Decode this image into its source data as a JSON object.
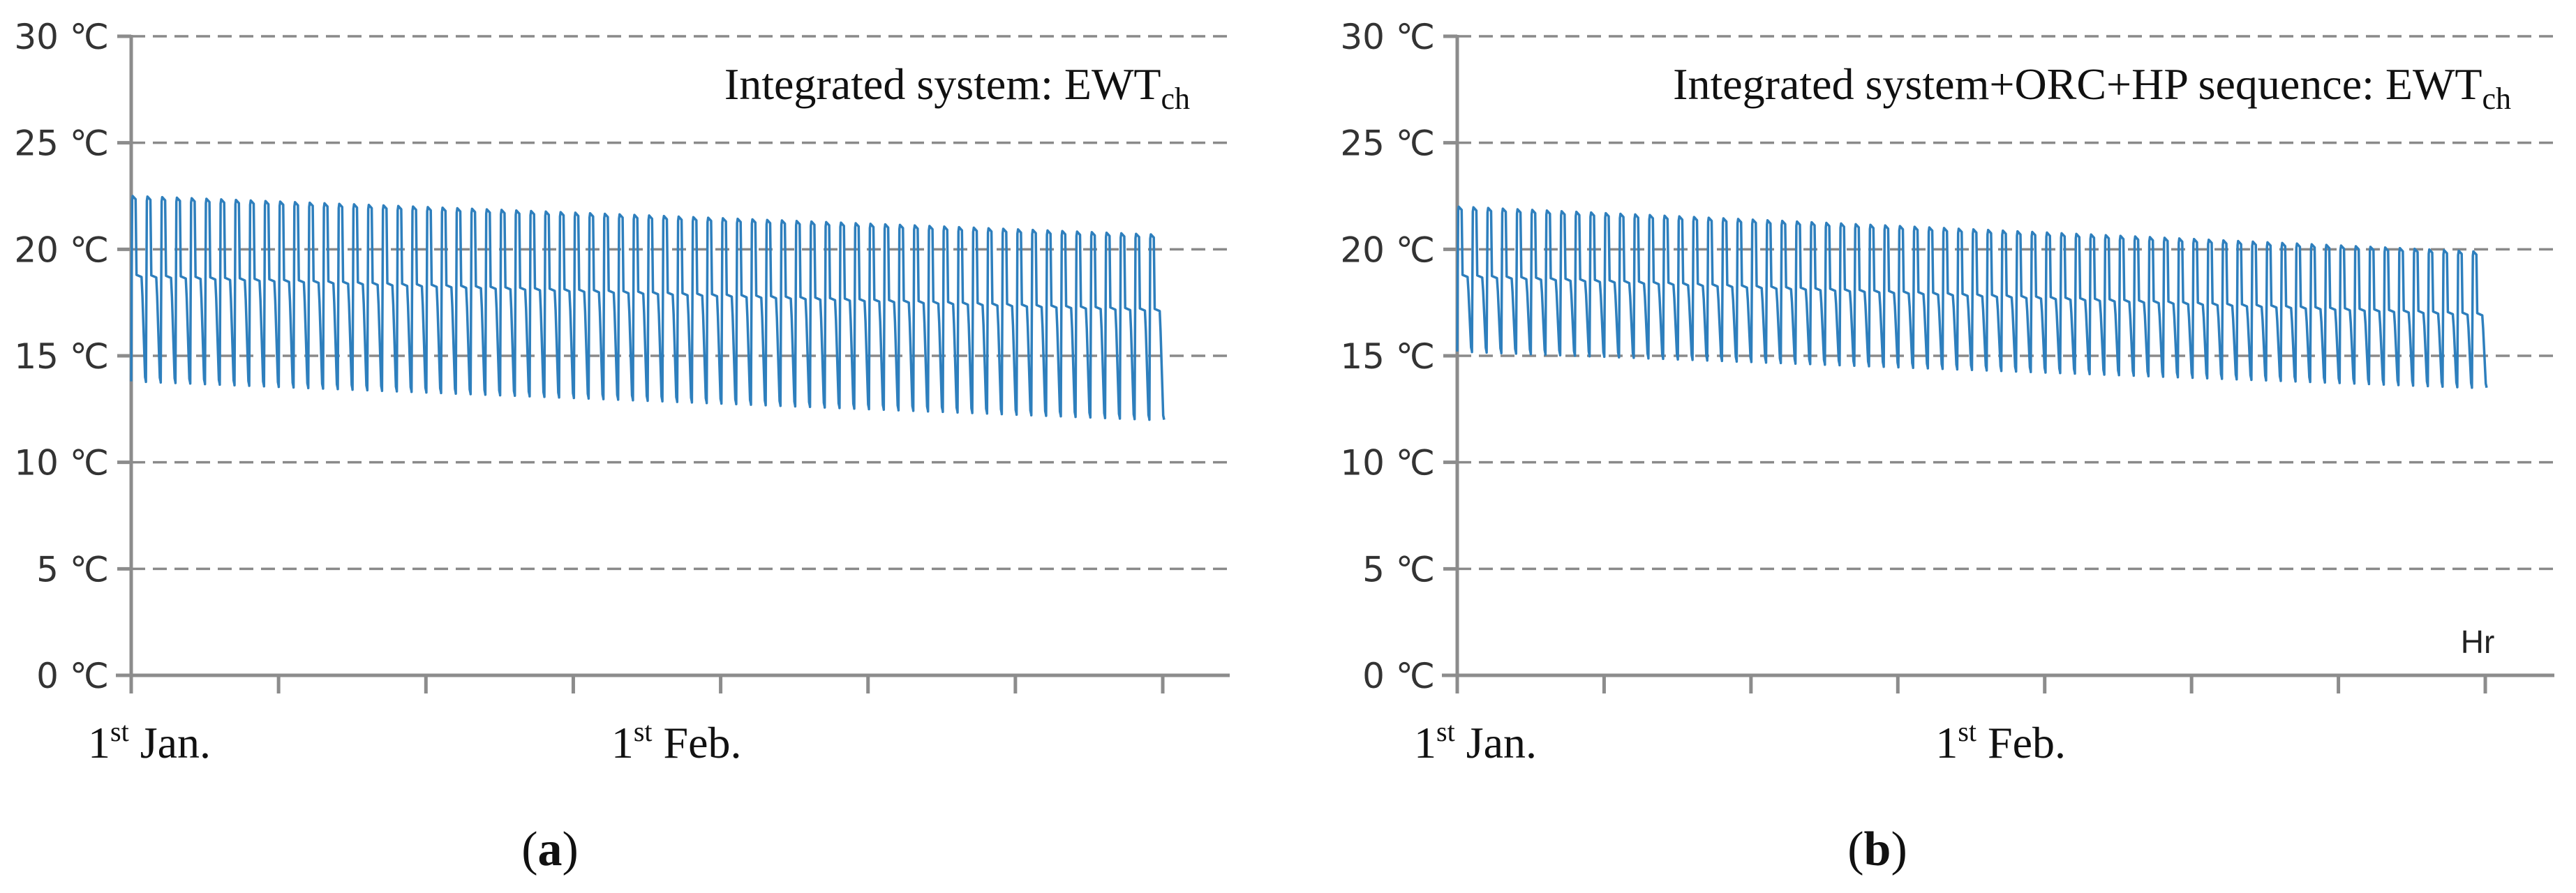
{
  "chart_data": [
    {
      "type": "line",
      "panel_label": "a",
      "title_main": "Integrated system: EWT",
      "title_subscript": "ch",
      "ylim": [
        0,
        30
      ],
      "yticks": [
        0,
        5,
        10,
        15,
        20,
        25,
        30
      ],
      "ytick_unit": "℃",
      "ytick_labels": [
        "0 ℃",
        "5 ℃",
        "10 ℃",
        "15 ℃",
        "20 ℃",
        "25 ℃",
        "30 ℃"
      ],
      "xlim_days": [
        0,
        75
      ],
      "x_minor_tick_days": [
        0,
        10.7,
        21.4,
        32.1,
        42.8,
        53.5,
        64.2,
        74.9
      ],
      "x_labels": [
        {
          "day": 0,
          "base": "1",
          "sup": "st",
          "text": " Jan."
        },
        {
          "day": 38,
          "base": "1",
          "sup": "st",
          "text": " Feb."
        }
      ],
      "x_unit_label": "",
      "grid": true,
      "series": [
        {
          "name": "EWT_ch",
          "color": "#2e7fbd",
          "cycles": 70,
          "start_day": 0,
          "end_day": 75,
          "peak_start": 22.5,
          "peak_end": 20.7,
          "min_start": 13.8,
          "min_end": 12.0,
          "step_start": 18.8,
          "step_end": 17.2
        }
      ]
    },
    {
      "type": "line",
      "panel_label": "b",
      "title_main": "Integrated system+ORC+HP sequence: EWT",
      "title_subscript": "ch",
      "ylim": [
        0,
        30
      ],
      "yticks": [
        0,
        5,
        10,
        15,
        20,
        25,
        30
      ],
      "ytick_unit": "℃",
      "ytick_labels": [
        "0 ℃",
        "5 ℃",
        "10 ℃",
        "15 ℃",
        "20 ℃",
        "25 ℃",
        "30 ℃"
      ],
      "xlim_days": [
        0,
        75
      ],
      "x_minor_tick_days": [
        0,
        10.7,
        21.4,
        32.1,
        42.8,
        53.5,
        64.2,
        74.9
      ],
      "x_labels": [
        {
          "day": 0,
          "base": "1",
          "sup": "st",
          "text": " Jan."
        },
        {
          "day": 38,
          "base": "1",
          "sup": "st",
          "text": " Feb."
        }
      ],
      "x_unit_label": "Hr",
      "grid": true,
      "series": [
        {
          "name": "EWT_ch",
          "color": "#2e7fbd",
          "cycles": 70,
          "start_day": 0,
          "end_day": 75,
          "peak_start": 22.0,
          "peak_end": 19.9,
          "min_start": 15.2,
          "min_end": 13.5,
          "step_start": 18.8,
          "step_end": 17.0
        }
      ]
    }
  ]
}
